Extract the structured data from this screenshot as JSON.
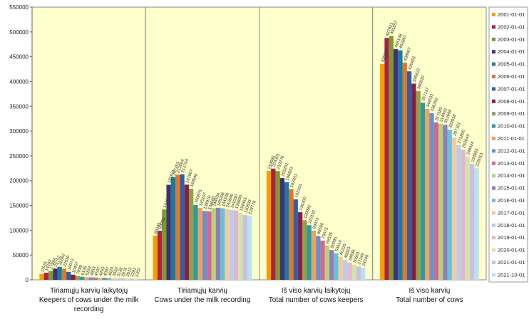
{
  "chart_data": {
    "type": "bar",
    "categories": [
      [
        "Tiriamųjų karvių laikytojų",
        "Keepers of cows under the milk",
        "recording"
      ],
      [
        "Tiriamųjų karvių",
        "Cows under the milk recording"
      ],
      [
        "Iš viso karvių laikytojų",
        "Total number of cows keepers"
      ],
      [
        "Iš viso karvių",
        "Total number of cows"
      ]
    ],
    "ylim": [
      0,
      550000
    ],
    "yticks": [
      0,
      50000,
      100000,
      150000,
      200000,
      250000,
      300000,
      350000,
      400000,
      450000,
      500000,
      550000
    ],
    "grid": false,
    "legend_position": "right",
    "series": [
      {
        "name": "2001-01-01",
        "color": "#ff9900",
        "values": [
          11931,
          89245,
          219595,
          435537
        ]
      },
      {
        "name": "2002-01-01",
        "color": "#a6234a",
        "values": [
          14293,
          99003,
          224301,
          487921
        ]
      },
      {
        "name": "2003-01-01",
        "color": "#7a9a2f",
        "values": [
          17864,
          142030,
          219270,
          491857
        ]
      },
      {
        "name": "2004-01-01",
        "color": "#3f2f80",
        "values": [
          22752,
          191671,
          205251,
          465148
        ]
      },
      {
        "name": "2005-01-01",
        "color": "#1f7a99",
        "values": [
          26352,
          207203,
          196923,
          462867
        ]
      },
      {
        "name": "2006-01-01",
        "color": "#e0762b",
        "values": [
          22539,
          212064,
          182951,
          438007
        ]
      },
      {
        "name": "2007-01-01",
        "color": "#2f5fa8",
        "values": [
          16072,
          212744,
          162333,
          420451
        ]
      },
      {
        "name": "2008-01-01",
        "color": "#8b1f3b",
        "values": [
          10407,
          191967,
          136300,
          395622
        ]
      },
      {
        "name": "2009-01-01",
        "color": "#8da14a",
        "values": [
          7899,
          183640,
          120082,
          380810
        ]
      },
      {
        "name": "2010-01-01",
        "color": "#2c9aa0",
        "values": [
          6136,
          150875,
          110192,
          357137
        ]
      },
      {
        "name": "2011-01-01",
        "color": "#f0a060",
        "values": [
          5193,
          145197,
          99072,
          344631
        ]
      },
      {
        "name": "2012-01-01",
        "color": "#6b8fd1",
        "values": [
          4853,
          138970,
          88560,
          336262
        ]
      },
      {
        "name": "2013-01-01",
        "color": "#d06a8a",
        "values": [
          4537,
          138060,
          79073,
          317580
        ]
      },
      {
        "name": "2014-01-01",
        "color": "#b7d17a",
        "values": [
          4263,
          144534,
          69536,
          314693
        ]
      },
      {
        "name": "2015-01-01",
        "color": "#8a7fc0",
        "values": [
          4097,
          145298,
          60095,
          312698
        ]
      },
      {
        "name": "2016-01-01",
        "color": "#69c2d0",
        "values": [
          3820,
          144338,
          53614,
          302818
        ]
      },
      {
        "name": "2017-01-01",
        "color": "#f5c9a0",
        "values": [
          3533,
          142840,
          46326,
          287101
        ]
      },
      {
        "name": "2018-01-01",
        "color": "#b9cdee",
        "values": [
          3136,
          141030,
          40023,
          271800
        ]
      },
      {
        "name": "2019-01-01",
        "color": "#e2b8c8",
        "values": [
          2875,
          139890,
          34836,
          262644
        ]
      },
      {
        "name": "2020-01-01",
        "color": "#d4e4a9",
        "values": [
          2633,
          134953,
          30601,
          248424
        ]
      },
      {
        "name": "2021-01-01",
        "color": "#c9c0e4",
        "values": [
          2392,
          130833,
          27249,
          233855
        ]
      },
      {
        "name": "2021-10-01",
        "color": "#b8e3ea",
        "values": [
          2202,
          128778,
          24248,
          225013
        ]
      }
    ]
  }
}
